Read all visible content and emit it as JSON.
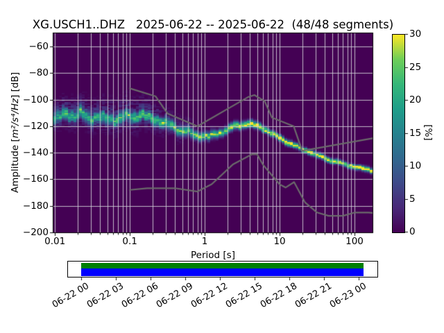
{
  "title": "XG.USCH1..DHZ   2025-06-22 -- 2025-06-22  (48/48 segments)",
  "axes": {
    "xlabel": "Period [s]",
    "ylabel_prefix": "Amplitude [",
    "ylabel_math": "m²/s⁴/Hz",
    "ylabel_suffix": "] [dB]",
    "xtick_labels": [
      "0.01",
      "0.1",
      "1",
      "10",
      "100"
    ],
    "xtick_values": [
      0.01,
      0.1,
      1,
      10,
      100
    ],
    "ytick_labels": [
      "−60",
      "−80",
      "−100",
      "−120",
      "−140",
      "−160",
      "−180",
      "−200"
    ],
    "ytick_values": [
      -60,
      -80,
      -100,
      -120,
      -140,
      -160,
      -180,
      -200
    ],
    "xlim": [
      0.00955,
      174
    ],
    "ylim": [
      -200,
      -50
    ],
    "grid_color": "#cfcfd6",
    "background_color": "#440154"
  },
  "colorbar": {
    "label": "[%]",
    "tick_labels": [
      "0",
      "5",
      "10",
      "15",
      "20",
      "25",
      "30"
    ],
    "tick_values": [
      0,
      5,
      10,
      15,
      20,
      25,
      30
    ],
    "vmin": 0,
    "vmax": 30,
    "colormap": "viridis",
    "stops": [
      "#440154",
      "#482878",
      "#3e4a89",
      "#31688e",
      "#26828e",
      "#1f9e89",
      "#35b779",
      "#6ece58",
      "#fde725"
    ]
  },
  "timeline": {
    "tick_labels": [
      "06-22 00",
      "06-22 03",
      "06-22 06",
      "06-22 09",
      "06-22 12",
      "06-22 15",
      "06-22 18",
      "06-22 21",
      "06-23 00"
    ],
    "bar_top_color": "#008000",
    "bar_bottom_color": "#0000ff"
  },
  "chart_data": {
    "type": "heatmap",
    "title": "XG.USCH1..DHZ   2025-06-22 -- 2025-06-22  (48/48 segments)",
    "station_id": "XG.USCH1..DHZ",
    "date_range": "2025-06-22 -- 2025-06-22",
    "segments": "48/48",
    "xlabel": "Period [s]",
    "ylabel": "Amplitude [m^2/s^4/Hz] [dB]",
    "colorbar_label": "[%]",
    "xscale": "log",
    "xlim": [
      0.00955,
      174
    ],
    "ylim": [
      -200,
      -50
    ],
    "clim": [
      0,
      30
    ],
    "grid": true,
    "ridge_db_by_period": [
      [
        0.0096,
        -115.2
      ],
      [
        0.012,
        -112.8
      ],
      [
        0.015,
        -110.9
      ],
      [
        0.02,
        -111.4
      ],
      [
        0.03,
        -112.9
      ],
      [
        0.045,
        -114.3
      ],
      [
        0.065,
        -114.6
      ],
      [
        0.08,
        -113.8
      ],
      [
        0.1,
        -112.6
      ],
      [
        0.13,
        -111.9
      ],
      [
        0.17,
        -112.8
      ],
      [
        0.22,
        -115.0
      ],
      [
        0.3,
        -118.0
      ],
      [
        0.45,
        -122.3
      ],
      [
        0.65,
        -125.4
      ],
      [
        0.85,
        -127.0
      ],
      [
        1.1,
        -127.7
      ],
      [
        1.5,
        -125.8
      ],
      [
        2.0,
        -122.3
      ],
      [
        2.8,
        -119.3
      ],
      [
        3.8,
        -118.3
      ],
      [
        5.0,
        -119.4
      ],
      [
        6.5,
        -122.5
      ],
      [
        8.5,
        -126.5
      ],
      [
        11,
        -130.3
      ],
      [
        15,
        -134.0
      ],
      [
        21,
        -137.8
      ],
      [
        30,
        -141.3
      ],
      [
        45,
        -145.0
      ],
      [
        65,
        -147.8
      ],
      [
        95,
        -150.3
      ],
      [
        130,
        -152.0
      ],
      [
        174,
        -153.6
      ]
    ],
    "ridge_peak_percent": [
      [
        0.0096,
        16
      ],
      [
        0.015,
        20
      ],
      [
        0.03,
        18
      ],
      [
        0.06,
        17
      ],
      [
        0.1,
        20
      ],
      [
        0.2,
        21
      ],
      [
        0.4,
        22
      ],
      [
        0.8,
        24
      ],
      [
        1.5,
        26
      ],
      [
        2.5,
        28
      ],
      [
        4,
        30
      ],
      [
        8,
        30
      ],
      [
        174,
        30
      ]
    ],
    "ridge_spread_sigma_db": [
      [
        0.0096,
        2.9
      ],
      [
        0.03,
        2.7
      ],
      [
        0.1,
        2.7
      ],
      [
        0.3,
        2.5
      ],
      [
        0.7,
        2.1
      ],
      [
        1.5,
        1.9
      ],
      [
        3,
        1.7
      ],
      [
        8,
        1.5
      ],
      [
        20,
        1.3
      ],
      [
        174,
        1.2
      ]
    ],
    "halo_percent": [
      [
        0.0096,
        3.4
      ],
      [
        0.06,
        3.6
      ],
      [
        0.15,
        3.4
      ],
      [
        0.35,
        2.4
      ],
      [
        0.8,
        1.2
      ],
      [
        1.6,
        0.4
      ],
      [
        2.5,
        0.0
      ],
      [
        174,
        0.0
      ]
    ],
    "halo_sigma_db": [
      [
        0.0096,
        6.5
      ],
      [
        0.1,
        8.0
      ],
      [
        0.4,
        6.5
      ],
      [
        1.0,
        5.0
      ],
      [
        174,
        4.0
      ]
    ],
    "ridge_wiggle_db": [
      [
        0.0096,
        1.7
      ],
      [
        0.05,
        1.7
      ],
      [
        0.2,
        1.3
      ],
      [
        0.7,
        1.0
      ],
      [
        2,
        0.7
      ],
      [
        6,
        0.5
      ],
      [
        20,
        0.4
      ],
      [
        174,
        0.35
      ]
    ],
    "noise_models": {
      "color": "#6b6b6b",
      "nhnm": [
        [
          0.1,
          -91.5
        ],
        [
          0.22,
          -97.4
        ],
        [
          0.32,
          -110.5
        ],
        [
          0.8,
          -120.0
        ],
        [
          3.8,
          -98.0
        ],
        [
          4.6,
          -96.5
        ],
        [
          6.3,
          -101.0
        ],
        [
          7.9,
          -113.5
        ],
        [
          15.4,
          -120.0
        ],
        [
          20.0,
          -138.5
        ],
        [
          174,
          -129.1
        ]
      ],
      "nlnm": [
        [
          0.1,
          -168.0
        ],
        [
          0.17,
          -166.7
        ],
        [
          0.4,
          -166.7
        ],
        [
          0.8,
          -169.2
        ],
        [
          1.24,
          -163.7
        ],
        [
          2.4,
          -148.6
        ],
        [
          4.3,
          -141.1
        ],
        [
          5.0,
          -141.1
        ],
        [
          6.0,
          -149.0
        ],
        [
          10.0,
          -163.8
        ],
        [
          12.0,
          -166.2
        ],
        [
          15.6,
          -162.1
        ],
        [
          21.9,
          -177.5
        ],
        [
          31.6,
          -185.0
        ],
        [
          45.0,
          -187.5
        ],
        [
          70.0,
          -187.5
        ],
        [
          101.0,
          -185.0
        ],
        [
          154.0,
          -185.0
        ],
        [
          174,
          -185.3
        ]
      ]
    }
  }
}
